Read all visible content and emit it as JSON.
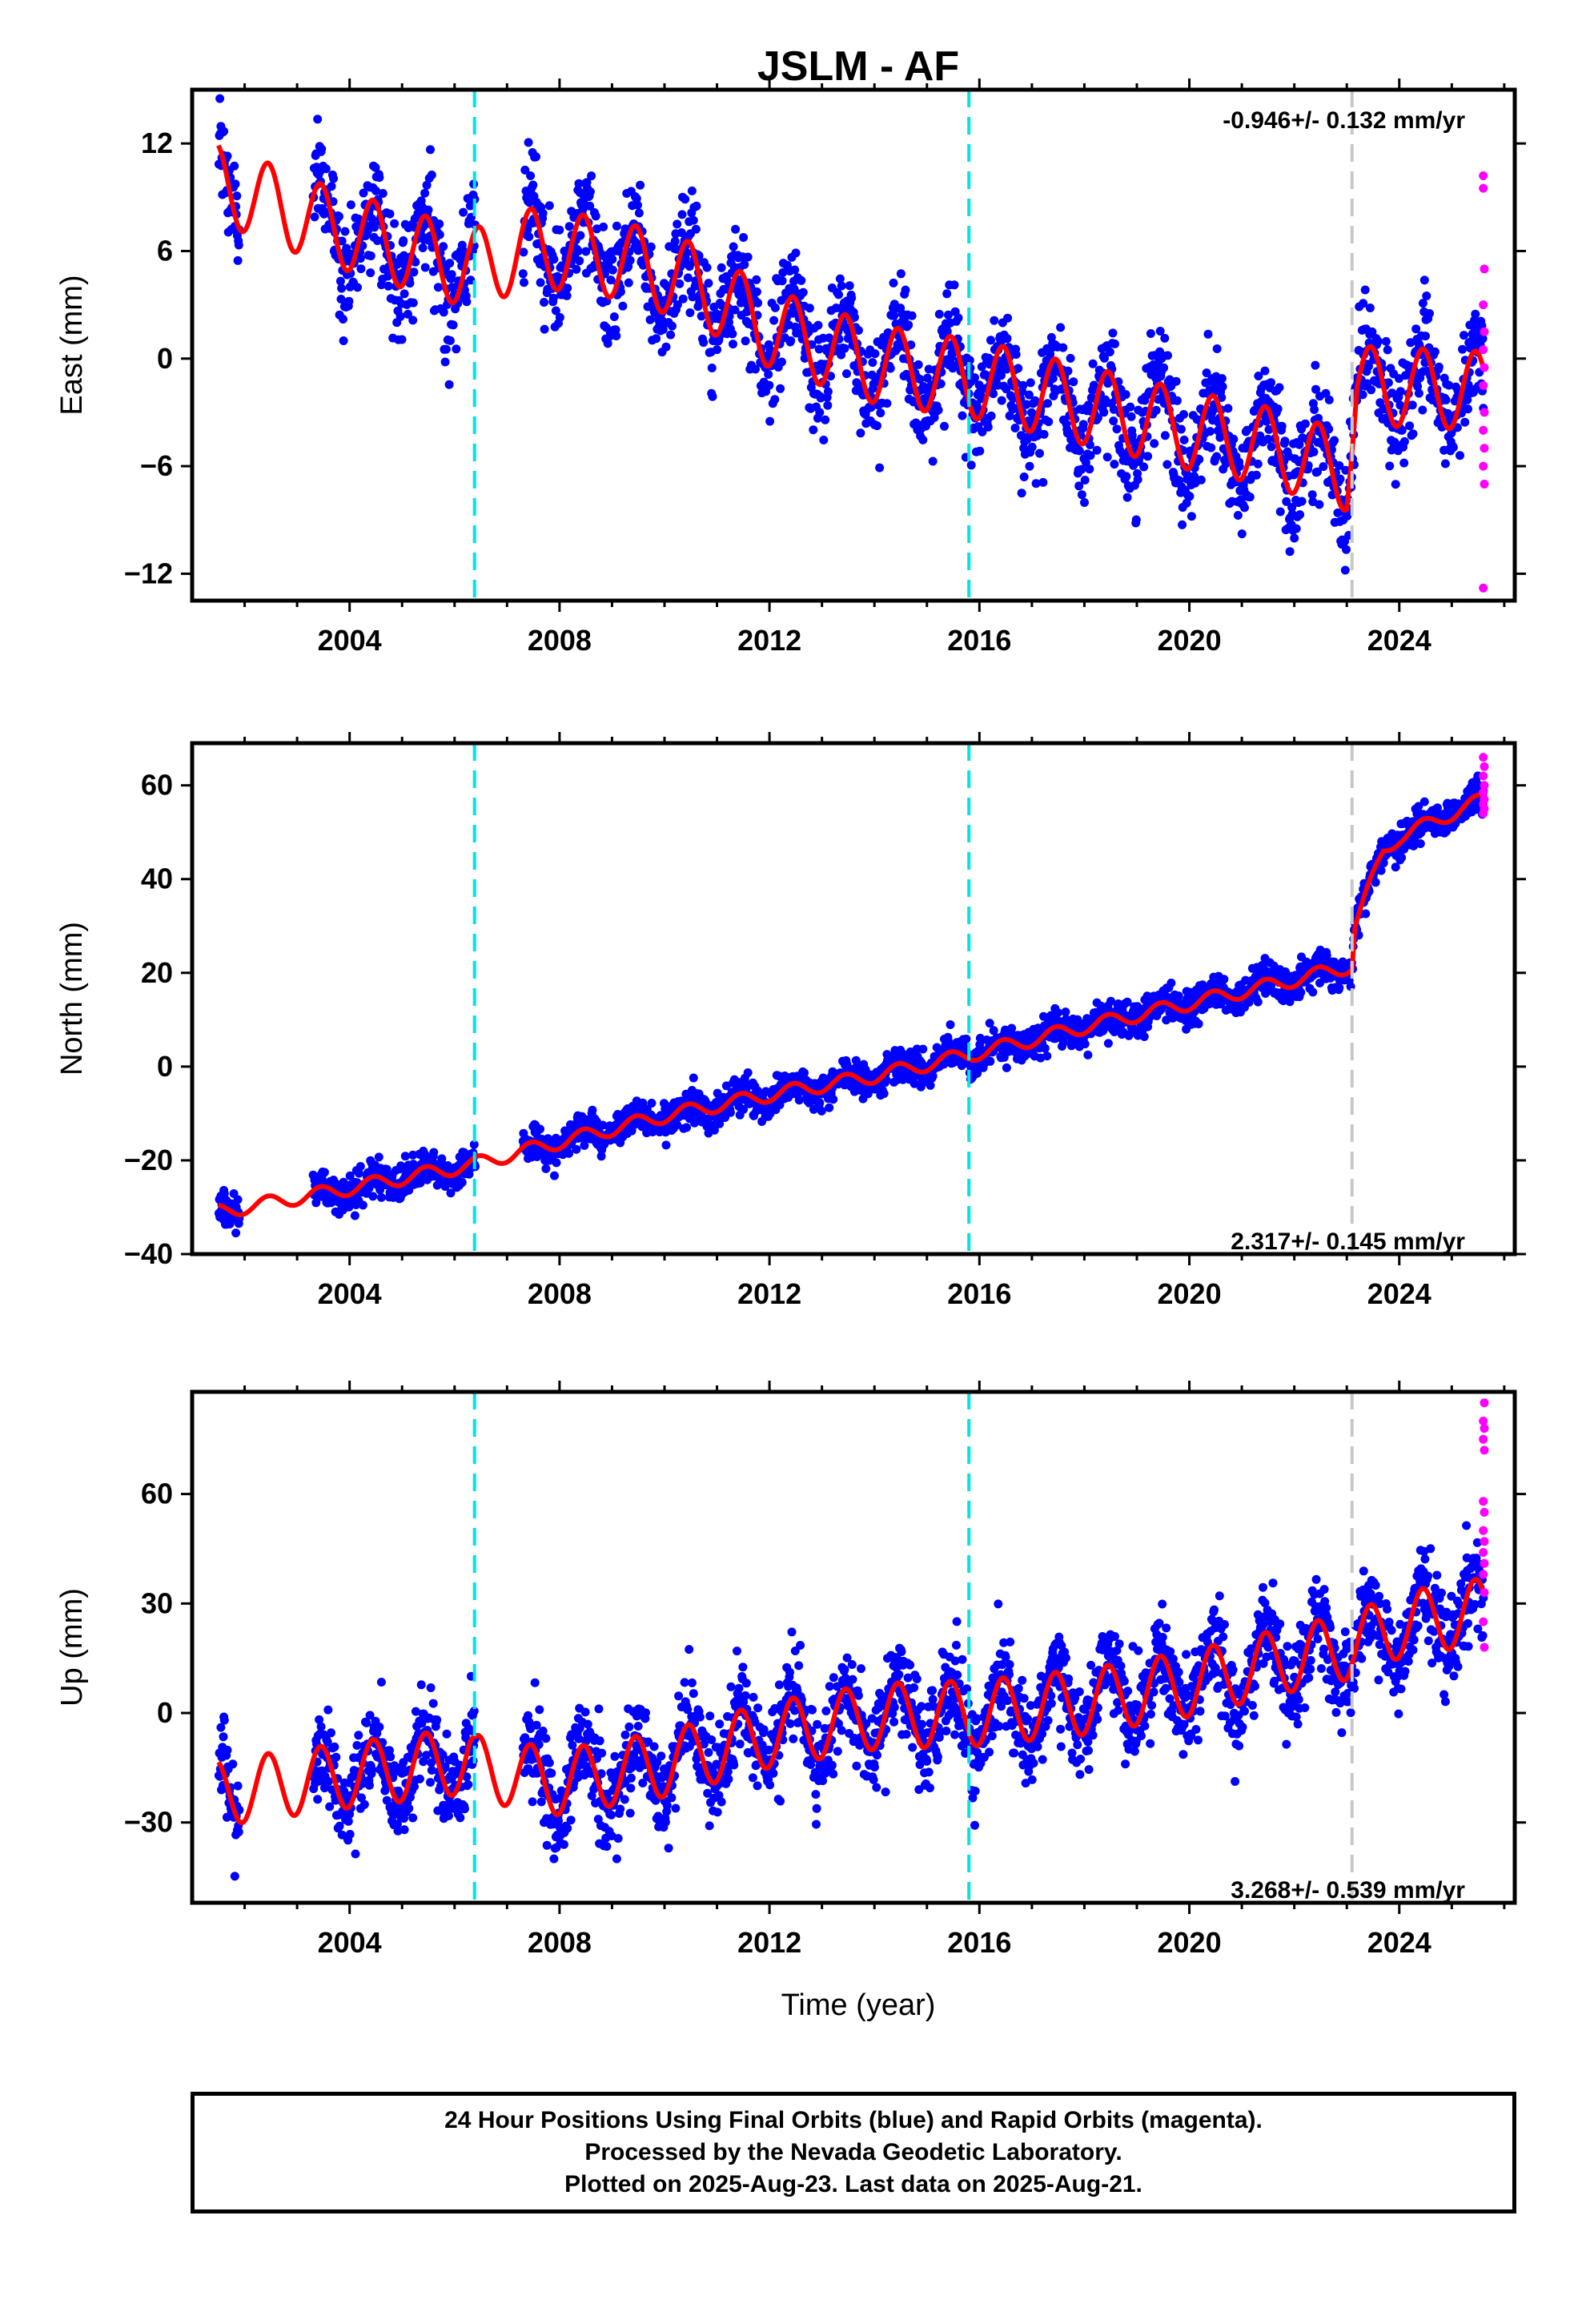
{
  "title": "JSLM - AF",
  "xlabel": "Time (year)",
  "footer": {
    "line1": "24 Hour Positions Using Final Orbits (blue) and Rapid Orbits (magenta).",
    "line2": "Processed by the Nevada Geodetic Laboratory.",
    "line3": "Plotted on 2025-Aug-23. Last data on 2025-Aug-21."
  },
  "colors": {
    "final_orbits": "#0000ff",
    "rapid_orbits": "#ff00ff",
    "model": "#ff0000",
    "equipment_change": "#00e5e5",
    "earthquake": "#c8c8c8"
  },
  "chart_data": [
    {
      "type": "scatter",
      "name": "east",
      "ylabel": "East (mm)",
      "rate_label": "-0.946+/- 0.132 mm/yr",
      "xlim": [
        2001.0,
        2026.2
      ],
      "ylim": [
        -13.5,
        15
      ],
      "yticks": [
        -12,
        -6,
        0,
        6,
        12
      ],
      "xticks": [
        2004,
        2008,
        2012,
        2016,
        2020,
        2024
      ],
      "offset_lines": [
        {
          "x": 2006.38,
          "kind": "equipment"
        },
        {
          "x": 2015.8,
          "kind": "equipment"
        },
        {
          "x": 2023.1,
          "kind": "earthquake"
        }
      ],
      "trend_points": [
        [
          2001.5,
          9.8
        ],
        [
          2003.5,
          7.5
        ],
        [
          2004.5,
          6.6
        ],
        [
          2006.3,
          5.0
        ],
        [
          2007.5,
          6.2
        ],
        [
          2009.0,
          5.6
        ],
        [
          2010.5,
          4.3
        ],
        [
          2012.0,
          1.7
        ],
        [
          2014.0,
          -0.3
        ],
        [
          2016.0,
          -1.2
        ],
        [
          2018.0,
          -2.6
        ],
        [
          2020.0,
          -4.0
        ],
        [
          2021.5,
          -4.9
        ],
        [
          2023.0,
          -6.3
        ],
        [
          2023.2,
          -1.5
        ],
        [
          2025.6,
          -1.8
        ]
      ],
      "seasonal_amplitude": 2.2,
      "scatter_sd": 1.5,
      "rapid_points": [
        [
          2025.6,
          10.2
        ],
        [
          2025.6,
          9.5
        ],
        [
          2025.62,
          5.0
        ],
        [
          2025.6,
          3.0
        ],
        [
          2025.62,
          1.5
        ],
        [
          2025.6,
          0.5
        ],
        [
          2025.62,
          -0.5
        ],
        [
          2025.6,
          -1.5
        ],
        [
          2025.62,
          -3.0
        ],
        [
          2025.6,
          -4.0
        ],
        [
          2025.62,
          -5.0
        ],
        [
          2025.6,
          -6.0
        ],
        [
          2025.62,
          -7.0
        ],
        [
          2025.6,
          -12.8
        ]
      ]
    },
    {
      "type": "scatter",
      "name": "north",
      "ylabel": "North (mm)",
      "rate_label": "2.317+/- 0.145 mm/yr",
      "xlim": [
        2001.0,
        2026.2
      ],
      "ylim": [
        -40,
        69
      ],
      "yticks": [
        -40,
        -20,
        0,
        20,
        40,
        60
      ],
      "xticks": [
        2004,
        2008,
        2012,
        2016,
        2020,
        2024
      ],
      "offset_lines": [
        {
          "x": 2006.38,
          "kind": "equipment"
        },
        {
          "x": 2015.8,
          "kind": "equipment"
        },
        {
          "x": 2023.1,
          "kind": "earthquake"
        }
      ],
      "trend_points": [
        [
          2001.5,
          -31.0
        ],
        [
          2003.5,
          -27.0
        ],
        [
          2006.3,
          -21.0
        ],
        [
          2007.5,
          -17.5
        ],
        [
          2010.0,
          -10.5
        ],
        [
          2012.0,
          -6.0
        ],
        [
          2014.0,
          -2.0
        ],
        [
          2016.0,
          3.0
        ],
        [
          2018.0,
          8.5
        ],
        [
          2020.0,
          13.5
        ],
        [
          2022.0,
          18.5
        ],
        [
          2023.1,
          21.5
        ],
        [
          2023.15,
          30.0
        ],
        [
          2023.7,
          46.0
        ],
        [
          2024.0,
          49.0
        ],
        [
          2025.6,
          57.0
        ]
      ],
      "seasonal_amplitude": 1.5,
      "scatter_sd": 1.8,
      "rapid_points": [
        [
          2025.6,
          66.0
        ],
        [
          2025.62,
          64.0
        ],
        [
          2025.6,
          62.0
        ],
        [
          2025.62,
          60.0
        ],
        [
          2025.6,
          58.5
        ],
        [
          2025.62,
          57.0
        ],
        [
          2025.6,
          56.0
        ],
        [
          2025.62,
          55.0
        ],
        [
          2025.6,
          54.0
        ]
      ]
    },
    {
      "type": "scatter",
      "name": "up",
      "ylabel": "Up (mm)",
      "rate_label": "3.268+/- 0.539 mm/yr",
      "xlim": [
        2001.0,
        2026.2
      ],
      "ylim": [
        -52,
        88
      ],
      "yticks": [
        -30,
        0,
        30,
        60
      ],
      "xticks": [
        2004,
        2008,
        2012,
        2016,
        2020,
        2024
      ],
      "offset_lines": [
        {
          "x": 2006.38,
          "kind": "equipment"
        },
        {
          "x": 2015.8,
          "kind": "equipment"
        },
        {
          "x": 2023.1,
          "kind": "earthquake"
        }
      ],
      "trend_points": [
        [
          2001.5,
          -22.0
        ],
        [
          2004.0,
          -17.0
        ],
        [
          2006.3,
          -13.0
        ],
        [
          2006.4,
          -15.0
        ],
        [
          2008.0,
          -19.0
        ],
        [
          2010.0,
          -14.0
        ],
        [
          2011.0,
          -10.0
        ],
        [
          2012.0,
          -6.0
        ],
        [
          2014.0,
          -1.0
        ],
        [
          2016.0,
          0.0
        ],
        [
          2018.0,
          3.0
        ],
        [
          2020.0,
          8.0
        ],
        [
          2022.0,
          15.0
        ],
        [
          2023.0,
          18.0
        ],
        [
          2024.0,
          24.0
        ],
        [
          2025.6,
          28.0
        ]
      ],
      "seasonal_amplitude": 9.0,
      "scatter_sd": 6.5,
      "rapid_points": [
        [
          2025.62,
          85.0
        ],
        [
          2025.6,
          80.0
        ],
        [
          2025.62,
          78.0
        ],
        [
          2025.6,
          75.0
        ],
        [
          2025.62,
          72.0
        ],
        [
          2025.6,
          58.0
        ],
        [
          2025.62,
          55.0
        ],
        [
          2025.6,
          50.0
        ],
        [
          2025.62,
          47.0
        ],
        [
          2025.6,
          44.0
        ],
        [
          2025.62,
          41.0
        ],
        [
          2025.6,
          38.0
        ],
        [
          2025.62,
          33.0
        ],
        [
          2025.6,
          25.0
        ],
        [
          2025.62,
          18.0
        ]
      ]
    }
  ]
}
